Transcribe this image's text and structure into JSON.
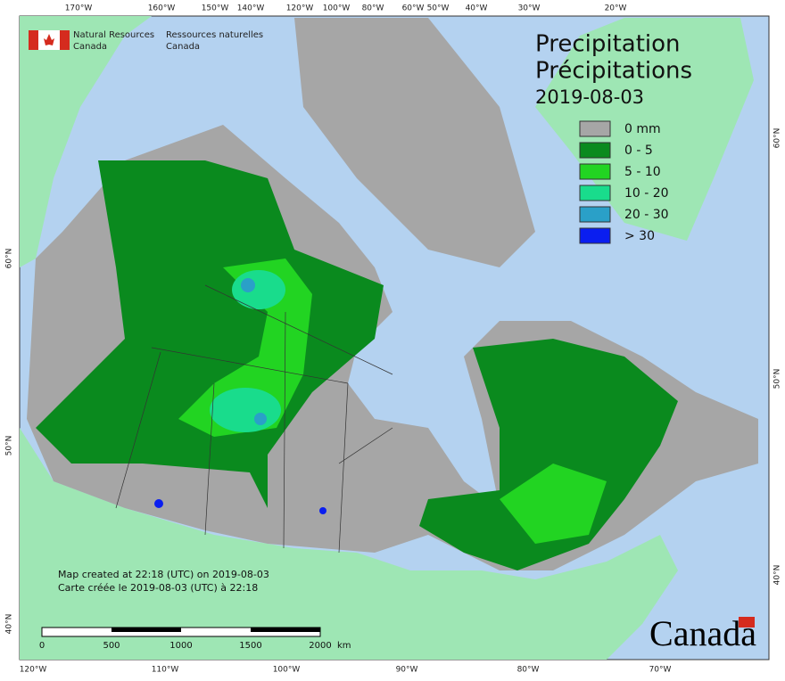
{
  "header": {
    "agency_en": [
      "Natural Resources",
      "Canada"
    ],
    "agency_fr": [
      "Ressources naturelles",
      "Canada"
    ]
  },
  "title": {
    "lines": [
      "Precipitation",
      "Précipitations"
    ],
    "date": "2019-08-03"
  },
  "legend": {
    "items": [
      {
        "label": "0 mm",
        "color": "#a6a6a6"
      },
      {
        "label": "0 - 5",
        "color": "#0a8a1e"
      },
      {
        "label": "5 - 10",
        "color": "#22d422"
      },
      {
        "label": "10 - 20",
        "color": "#19dc8c"
      },
      {
        "label": "20 - 30",
        "color": "#2aa0c8"
      },
      {
        "label": "> 30",
        "color": "#0a1ef0"
      }
    ]
  },
  "graticule": {
    "top": [
      "170°W",
      "160°W",
      "150°W",
      "140°W",
      "120°W",
      "100°W",
      "80°W",
      "60°W",
      "50°W",
      "40°W",
      "30°W",
      "20°W"
    ],
    "bottom": [
      "120°W",
      "110°W",
      "100°W",
      "90°W",
      "80°W",
      "70°W"
    ],
    "left": [
      "60°N",
      "50°N",
      "40°N"
    ],
    "right": [
      "60°N",
      "50°N",
      "40°N"
    ]
  },
  "notes": [
    "Map created at 22:18 (UTC) on 2019-08-03",
    "Carte créée le 2019-08-03 (UTC) à 22:18"
  ],
  "scale_bar": {
    "labels": [
      "0",
      "500",
      "1000",
      "1500",
      "2000"
    ],
    "unit": "km"
  },
  "wordmark": "Canada"
}
